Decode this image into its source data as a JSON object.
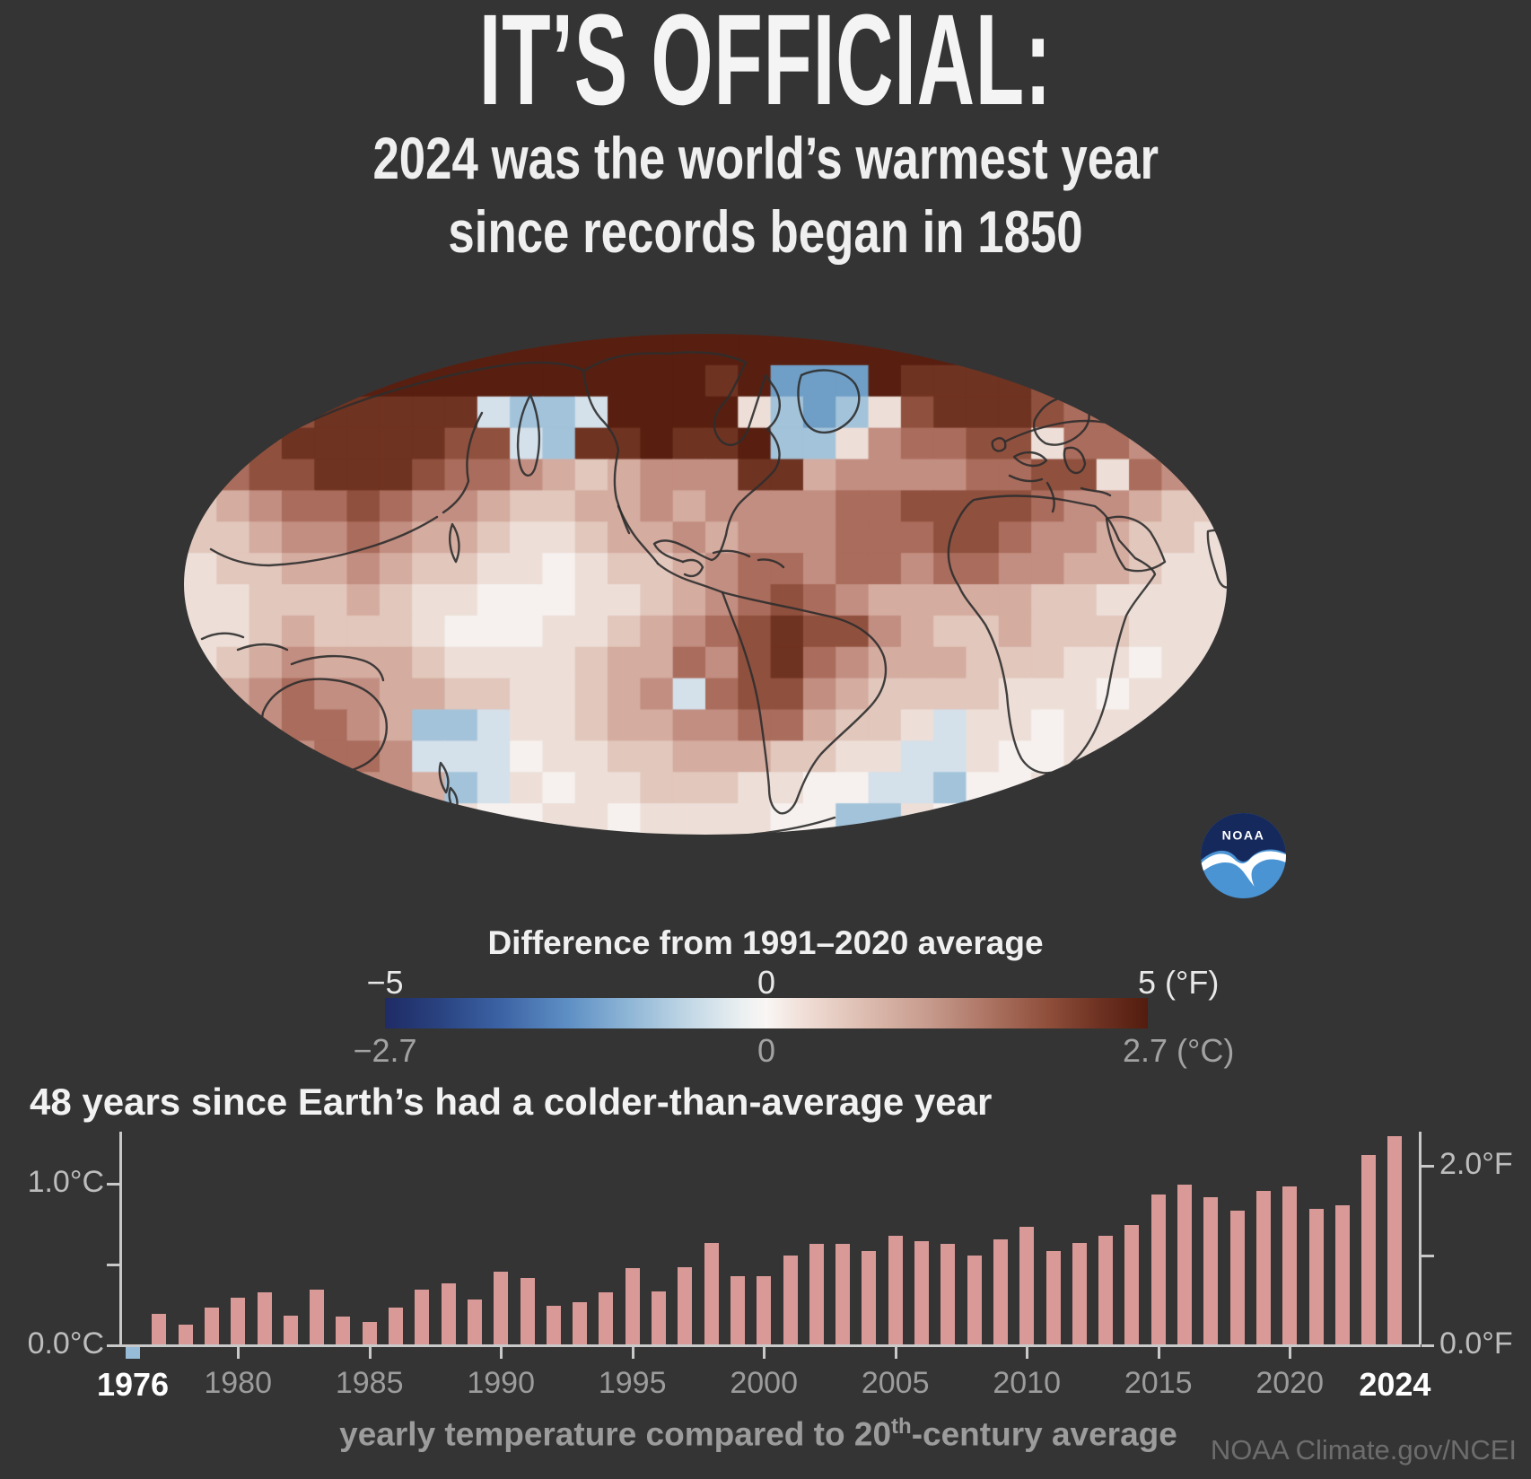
{
  "header": {
    "title": "IT’S OFFICIAL:",
    "subtitle_line1": "2024 was the world’s warmest year",
    "subtitle_line2": "since records began in 1850"
  },
  "logo": {
    "text": "NOAA"
  },
  "legend": {
    "title": "Difference from 1991–2020 average",
    "scale_f": {
      "min": "−5",
      "mid": "0",
      "max": "5 (°F)"
    },
    "scale_c": {
      "min": "−2.7",
      "mid": "0",
      "max": "2.7 (°C)"
    },
    "gradient": [
      {
        "p": 0,
        "c": "#1e2b66"
      },
      {
        "p": 7,
        "c": "#29427f"
      },
      {
        "p": 15,
        "c": "#3b62a4"
      },
      {
        "p": 24,
        "c": "#5e8fc4"
      },
      {
        "p": 32,
        "c": "#8fb6d6"
      },
      {
        "p": 40,
        "c": "#c3d8e6"
      },
      {
        "p": 47,
        "c": "#ecf0f1"
      },
      {
        "p": 50,
        "c": "#f9f6f4"
      },
      {
        "p": 55,
        "c": "#f0ded6"
      },
      {
        "p": 63,
        "c": "#ddbcb0"
      },
      {
        "p": 71,
        "c": "#c79c8e"
      },
      {
        "p": 79,
        "c": "#ad7463"
      },
      {
        "p": 87,
        "c": "#8e4e3a"
      },
      {
        "p": 94,
        "c": "#6c3020"
      },
      {
        "p": 100,
        "c": "#521c0e"
      }
    ]
  },
  "map": {
    "grid_cols": 32,
    "grid_rows": 16,
    "palette": {
      "0": "#f6f1ee",
      "1": "#eddfd8",
      "2": "#e2c7bc",
      "3": "#d4aca0",
      "4": "#c28e81",
      "5": "#aa6c5c",
      "6": "#90503e",
      "7": "#6f3321",
      "8": "#581f10",
      "b": "#a3c3da",
      "c": "#6f9ec6",
      "d": "#d4e0ea"
    },
    "grid": [
      "67788888888888888888888877777666",
      "56777888888888887 8ccc87777665555",
      "556677777dbbd88881bcb16777655554",
      "4667777766db778778bb145566155444",
      "35667776554323444773444455661543",
      "23455654432233434444556666544322",
      "22344543321123343444555665443221",
      "12233432211012234554554554433211",
      "11222321100011234565433333221111",
      "11232221000112345676643223222111",
      "12343332111123354675433322211011",
      "234544332211234d5664322221110111",
      "2345543bbd1123344553221d11011121",
      "1234554ddd011223332211dd10011232",
      "01123443bd10112221100ddb00112343",
      "b01123321001101111 00bb1001123bb1"
    ]
  },
  "chart_data": {
    "type": "bar",
    "title": "48 years since Earth’s had a colder-than-average year",
    "x": [
      1976,
      1977,
      1978,
      1979,
      1980,
      1981,
      1982,
      1983,
      1984,
      1985,
      1986,
      1987,
      1988,
      1989,
      1990,
      1991,
      1992,
      1993,
      1994,
      1995,
      1996,
      1997,
      1998,
      1999,
      2000,
      2001,
      2002,
      2003,
      2004,
      2005,
      2006,
      2007,
      2008,
      2009,
      2010,
      2011,
      2012,
      2013,
      2014,
      2015,
      2016,
      2017,
      2018,
      2019,
      2020,
      2021,
      2022,
      2023,
      2024
    ],
    "values": [
      -0.07,
      0.19,
      0.12,
      0.23,
      0.29,
      0.32,
      0.18,
      0.34,
      0.17,
      0.14,
      0.23,
      0.34,
      0.38,
      0.28,
      0.45,
      0.41,
      0.24,
      0.26,
      0.32,
      0.47,
      0.33,
      0.48,
      0.63,
      0.42,
      0.42,
      0.55,
      0.62,
      0.62,
      0.58,
      0.67,
      0.64,
      0.62,
      0.55,
      0.65,
      0.73,
      0.58,
      0.63,
      0.67,
      0.74,
      0.93,
      0.99,
      0.91,
      0.83,
      0.95,
      0.98,
      0.84,
      0.86,
      1.17,
      1.29
    ],
    "unit": "°C",
    "ylim_c": [
      -0.15,
      1.35
    ],
    "grid": false,
    "left_ticks": [
      {
        "label": "1.0°C",
        "value": 1.0
      },
      {
        "label": "",
        "value": 0.5
      },
      {
        "label": "0.0°C",
        "value": 0.0
      }
    ],
    "right_ticks": [
      {
        "label": "2.0°F",
        "value_f": 2.0
      },
      {
        "label": "",
        "value_f": 1.0
      },
      {
        "label": "0.0°F",
        "value_f": 0.0
      }
    ],
    "x_tick_labels": [
      "1976",
      "1980",
      "1985",
      "1990",
      "1995",
      "2000",
      "2005",
      "2010",
      "2015",
      "2020",
      "2024"
    ],
    "x_tick_emphasis": [
      "1976",
      "2024"
    ],
    "x_axis_tick_marks": [
      1980,
      1985,
      1990,
      1995,
      2000,
      2005,
      2010,
      2015,
      2020
    ],
    "bar_color": "#d99a97",
    "negative_bar_color": "#96bcd8",
    "caption": {
      "pre": "yearly temperature compared to 20",
      "sup": "th",
      "post": "-century average"
    },
    "credit": "NOAA Climate.gov/NCEI"
  }
}
